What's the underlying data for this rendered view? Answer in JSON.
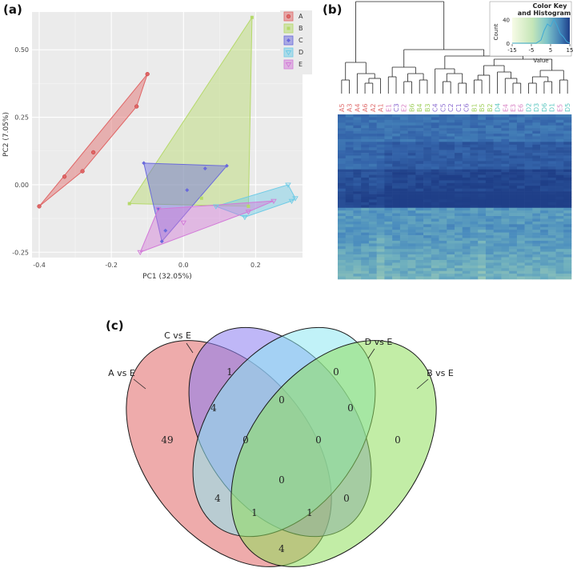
{
  "panel_labels": {
    "a": "(a)",
    "b": "(b)",
    "c": "(c)"
  },
  "chart_data": [
    {
      "type": "scatter",
      "title": "",
      "xlabel": "PC1 (32.05%)",
      "ylabel": "PC2 (7.05%)",
      "xlim": [
        -0.42,
        0.33
      ],
      "ylim": [
        -0.27,
        0.64
      ],
      "xticks": [
        {
          "v": -0.4,
          "label": "-0.4"
        },
        {
          "v": -0.2,
          "label": "-0.2"
        },
        {
          "v": 0.0,
          "label": "0.0"
        },
        {
          "v": 0.2,
          "label": "0.2"
        }
      ],
      "yticks": [
        {
          "v": -0.25,
          "label": "-0.25"
        },
        {
          "v": 0.0,
          "label": "0.00"
        },
        {
          "v": 0.25,
          "label": "0.25"
        },
        {
          "v": 0.5,
          "label": "0.50"
        }
      ],
      "legend_position": "top-right",
      "groups": [
        {
          "name": "A",
          "color": "#e06666",
          "marker": "circle",
          "points": [
            [
              -0.4,
              -0.08
            ],
            [
              -0.33,
              0.03
            ],
            [
              -0.28,
              0.05
            ],
            [
              -0.25,
              0.12
            ],
            [
              -0.13,
              0.29
            ],
            [
              -0.1,
              0.41
            ]
          ]
        },
        {
          "name": "B",
          "color": "#b5d96a",
          "marker": "square",
          "points": [
            [
              0.19,
              0.62
            ],
            [
              -0.15,
              -0.07
            ],
            [
              0.18,
              -0.08
            ],
            [
              0.05,
              -0.05
            ]
          ]
        },
        {
          "name": "C",
          "color": "#6a6adc",
          "marker": "diamond",
          "points": [
            [
              -0.11,
              0.08
            ],
            [
              0.06,
              0.06
            ],
            [
              0.12,
              0.07
            ],
            [
              -0.06,
              -0.21
            ],
            [
              0.01,
              -0.02
            ],
            [
              -0.05,
              -0.17
            ],
            [
              -0.07,
              -0.09
            ]
          ]
        },
        {
          "name": "D",
          "color": "#6ecbe6",
          "marker": "triangle-down",
          "points": [
            [
              0.29,
              0.0
            ],
            [
              0.31,
              -0.05
            ],
            [
              0.17,
              -0.12
            ],
            [
              0.09,
              -0.08
            ],
            [
              0.3,
              -0.06
            ]
          ]
        },
        {
          "name": "E",
          "color": "#d27ad8",
          "marker": "triangle-down",
          "points": [
            [
              -0.12,
              -0.25
            ],
            [
              -0.07,
              -0.09
            ],
            [
              0.25,
              -0.06
            ],
            [
              0.18,
              -0.1
            ],
            [
              0.0,
              -0.14
            ]
          ]
        }
      ]
    },
    {
      "type": "heatmap",
      "title": "Color Key and Histogram",
      "xlabel": "Value",
      "ylabel": "Count",
      "color_key_ticks": [
        {
          "v": -15,
          "label": "-15"
        },
        {
          "v": -5,
          "label": "-5"
        },
        {
          "v": 5,
          "label": "5"
        },
        {
          "v": 15,
          "label": "15"
        }
      ],
      "count_ticks": [
        {
          "v": 0,
          "label": "0"
        },
        {
          "v": 40,
          "label": "40"
        }
      ],
      "columns": [
        "A5",
        "A3",
        "A4",
        "A6",
        "A2",
        "A1",
        "E1",
        "C3",
        "E2",
        "B6",
        "B4",
        "B3",
        "C4",
        "C5",
        "C2",
        "C1",
        "C6",
        "B1",
        "B5",
        "B2",
        "D4",
        "E4",
        "E3",
        "E6",
        "D2",
        "D3",
        "D6",
        "D1",
        "E5",
        "D5"
      ],
      "column_group_colors": {
        "A": "#e07070",
        "B": "#9fcf5c",
        "C": "#8a6ad0",
        "D": "#5cc7c0",
        "E": "#d985c6"
      },
      "row_count": 60
    },
    {
      "type": "venn",
      "sets": [
        "A vs E",
        "C vs E",
        "D vs E",
        "B vs E"
      ],
      "regions": [
        {
          "sets": [
            "A vs E"
          ],
          "value": 49
        },
        {
          "sets": [
            "C vs E"
          ],
          "value": 1
        },
        {
          "sets": [
            "D vs E"
          ],
          "value": 0
        },
        {
          "sets": [
            "B vs E"
          ],
          "value": 0
        },
        {
          "sets": [
            "A vs E",
            "C vs E"
          ],
          "value": 4
        },
        {
          "sets": [
            "C vs E",
            "D vs E"
          ],
          "value": 0
        },
        {
          "sets": [
            "D vs E",
            "B vs E"
          ],
          "value": 0
        },
        {
          "sets": [
            "A vs E",
            "C vs E",
            "D vs E"
          ],
          "value": 0
        },
        {
          "sets": [
            "C vs E",
            "D vs E",
            "B vs E"
          ],
          "value": 0
        },
        {
          "sets": [
            "A vs E",
            "C vs E",
            "D vs E",
            "B vs E"
          ],
          "value": 0
        },
        {
          "sets": [
            "A vs E",
            "D vs E"
          ],
          "value": 4
        },
        {
          "sets": [
            "C vs E",
            "B vs E"
          ],
          "value": 0
        },
        {
          "sets": [
            "A vs E",
            "D vs E",
            "B vs E"
          ],
          "value": 1
        },
        {
          "sets": [
            "A vs E",
            "C vs E",
            "B vs E"
          ],
          "value": 1
        },
        {
          "sets": [
            "A vs E",
            "B vs E"
          ],
          "value": 4
        }
      ],
      "colors": {
        "A vs E": "#e06666",
        "C vs E": "#8a7cf0",
        "D vs E": "#8ee8f2",
        "B vs E": "#8fde5c"
      }
    }
  ]
}
